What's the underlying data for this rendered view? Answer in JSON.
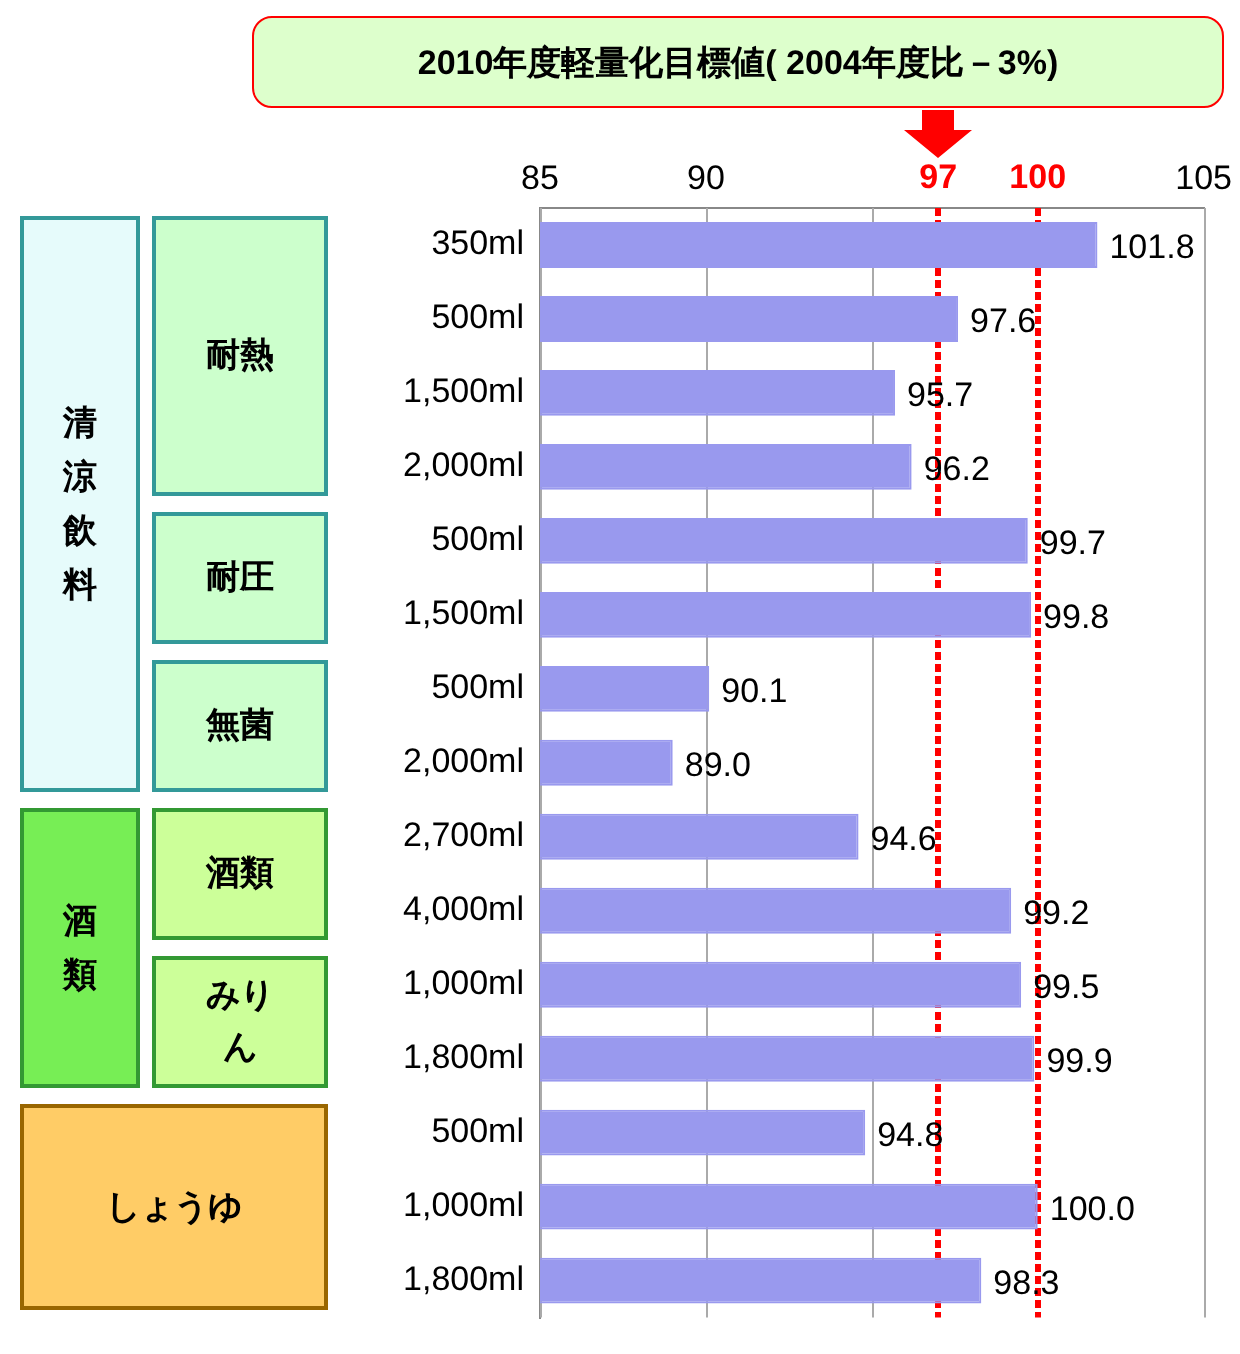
{
  "chart_data": {
    "type": "bar",
    "orientation": "horizontal",
    "categories": [
      "350ml",
      "500ml",
      "1,500ml",
      "2,000ml",
      "500ml",
      "1,500ml",
      "500ml",
      "2,000ml",
      "2,700ml",
      "4,000ml",
      "1,000ml",
      "1,800ml",
      "500ml",
      "1,000ml",
      "1,800ml"
    ],
    "values": [
      101.8,
      97.6,
      95.7,
      96.2,
      99.7,
      99.8,
      90.1,
      89.0,
      94.6,
      99.2,
      99.5,
      99.9,
      94.8,
      100.0,
      98.3
    ],
    "value_labels": [
      "101.8",
      "97.6",
      "95.7",
      "96.2",
      "99.7",
      "99.8",
      "90.1",
      "89.0",
      "94.6",
      "99.2",
      "99.5",
      "99.9",
      "94.8",
      "100.0",
      "98.3"
    ],
    "color": "#9999ee",
    "xlim": [
      85,
      105
    ],
    "title": "2010年度軽量化目標値( 2004年度比－3%)",
    "xticks": [
      85,
      90,
      {
        "value": 95,
        "label": null
      },
      105
    ],
    "grid": "x",
    "ref_lines": [
      {
        "axis": "x",
        "value": 97,
        "label": "97",
        "color": "#ff0000",
        "line_style": "dotted"
      },
      {
        "axis": "x",
        "value": 100,
        "label": "100",
        "color": "#ff0000",
        "line_style": "dotted"
      }
    ],
    "annotations": [
      "清涼飲料",
      "耐熱",
      "耐圧",
      "無菌",
      "酒類",
      "酒類",
      "みりん",
      "しょうゆ"
    ]
  }
}
